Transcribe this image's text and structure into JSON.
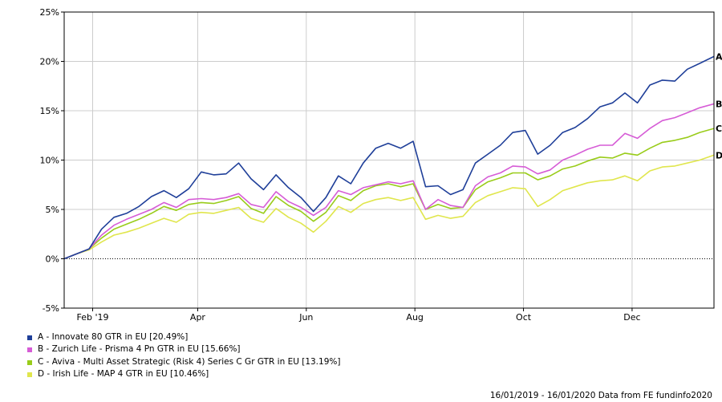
{
  "chart_data": {
    "type": "line",
    "x_range": [
      "16/01/2019",
      "16/01/2020"
    ],
    "ylim": [
      -5,
      25
    ],
    "y_ticks": [
      -5,
      0,
      5,
      10,
      15,
      20,
      25
    ],
    "y_tick_labels": [
      "-5%",
      "0%",
      "5%",
      "10%",
      "15%",
      "20%",
      "25%"
    ],
    "x_ticks": [
      {
        "label": "Feb '19",
        "date": "2019-02-01"
      },
      {
        "label": "Apr",
        "date": "2019-04-01"
      },
      {
        "label": "Jun",
        "date": "2019-06-01"
      },
      {
        "label": "Aug",
        "date": "2019-08-01"
      },
      {
        "label": "Oct",
        "date": "2019-10-01"
      },
      {
        "label": "Dec",
        "date": "2019-12-01"
      }
    ],
    "grid": true,
    "zero_line": "dotted",
    "legend_position": "bottom-left",
    "x": [
      "2019-01-16",
      "2019-01-23",
      "2019-01-30",
      "2019-02-06",
      "2019-02-13",
      "2019-02-20",
      "2019-02-27",
      "2019-03-06",
      "2019-03-13",
      "2019-03-20",
      "2019-03-27",
      "2019-04-03",
      "2019-04-10",
      "2019-04-17",
      "2019-04-24",
      "2019-05-01",
      "2019-05-08",
      "2019-05-15",
      "2019-05-22",
      "2019-05-29",
      "2019-06-05",
      "2019-06-12",
      "2019-06-19",
      "2019-06-26",
      "2019-07-03",
      "2019-07-10",
      "2019-07-17",
      "2019-07-24",
      "2019-07-31",
      "2019-08-07",
      "2019-08-14",
      "2019-08-21",
      "2019-08-28",
      "2019-09-04",
      "2019-09-11",
      "2019-09-18",
      "2019-09-25",
      "2019-10-02",
      "2019-10-09",
      "2019-10-16",
      "2019-10-23",
      "2019-10-30",
      "2019-11-06",
      "2019-11-13",
      "2019-11-20",
      "2019-11-27",
      "2019-12-04",
      "2019-12-11",
      "2019-12-18",
      "2019-12-25",
      "2020-01-01",
      "2020-01-08",
      "2020-01-16"
    ],
    "series": [
      {
        "name": "A - Innovate 80 GTR in EU [20.49%]",
        "end_label": "A",
        "color": "#1f3f99",
        "values": [
          0,
          0.5,
          1.0,
          3.0,
          4.2,
          4.6,
          5.3,
          6.3,
          6.9,
          6.2,
          7.1,
          8.8,
          8.5,
          8.6,
          9.7,
          8.1,
          7.0,
          8.5,
          7.2,
          6.2,
          4.8,
          6.2,
          8.4,
          7.6,
          9.7,
          11.2,
          11.7,
          11.2,
          11.9,
          7.3,
          7.4,
          6.5,
          7.0,
          9.7,
          10.6,
          11.5,
          12.8,
          13.0,
          10.6,
          11.5,
          12.8,
          13.3,
          14.2,
          15.4,
          15.8,
          16.8,
          15.8,
          17.6,
          18.1,
          18.0,
          19.2,
          19.8,
          20.5
        ]
      },
      {
        "name": "B - Zurich Life - Prisma 4 Pn GTR in EU [15.66%]",
        "end_label": "B",
        "color": "#d65cd6",
        "values": [
          0,
          0.5,
          1.0,
          2.4,
          3.4,
          4.0,
          4.5,
          5.0,
          5.7,
          5.2,
          6.0,
          6.1,
          6.0,
          6.2,
          6.6,
          5.5,
          5.2,
          6.8,
          5.8,
          5.2,
          4.4,
          5.2,
          6.9,
          6.5,
          7.2,
          7.5,
          7.8,
          7.6,
          7.9,
          5.0,
          6.0,
          5.4,
          5.2,
          7.4,
          8.3,
          8.7,
          9.4,
          9.3,
          8.6,
          9.0,
          10.0,
          10.5,
          11.1,
          11.5,
          11.5,
          12.7,
          12.2,
          13.2,
          14.0,
          14.3,
          14.8,
          15.3,
          15.7
        ]
      },
      {
        "name": "C - Aviva - Multi Asset Strategic (Risk 4) Series C Gr GTR in EU [13.19%]",
        "end_label": "C",
        "color": "#99cc1a",
        "values": [
          0,
          0.5,
          1.0,
          2.1,
          3.0,
          3.5,
          4.0,
          4.6,
          5.3,
          4.9,
          5.5,
          5.7,
          5.6,
          5.9,
          6.3,
          5.1,
          4.6,
          6.3,
          5.4,
          4.8,
          3.8,
          4.7,
          6.4,
          5.9,
          6.9,
          7.4,
          7.6,
          7.3,
          7.6,
          5.0,
          5.5,
          5.1,
          5.2,
          7.0,
          7.8,
          8.2,
          8.7,
          8.7,
          8.0,
          8.4,
          9.1,
          9.4,
          9.9,
          10.3,
          10.2,
          10.7,
          10.5,
          11.2,
          11.8,
          12.0,
          12.3,
          12.8,
          13.2
        ]
      },
      {
        "name": "D - Irish Life - MAP 4 GTR in EU [10.46%]",
        "end_label": "D",
        "color": "#e0e64d",
        "values": [
          0,
          0.5,
          0.9,
          1.7,
          2.4,
          2.7,
          3.1,
          3.6,
          4.1,
          3.7,
          4.5,
          4.7,
          4.6,
          4.9,
          5.2,
          4.1,
          3.7,
          5.1,
          4.2,
          3.6,
          2.7,
          3.8,
          5.3,
          4.7,
          5.6,
          6.0,
          6.2,
          5.9,
          6.2,
          4.0,
          4.4,
          4.1,
          4.3,
          5.7,
          6.4,
          6.8,
          7.2,
          7.1,
          5.3,
          6.0,
          6.9,
          7.3,
          7.7,
          7.9,
          8.0,
          8.4,
          7.9,
          8.9,
          9.3,
          9.4,
          9.7,
          10.0,
          10.5
        ]
      }
    ],
    "source_text": "16/01/2019 - 16/01/2020 Data from FE fundinfo2020"
  }
}
